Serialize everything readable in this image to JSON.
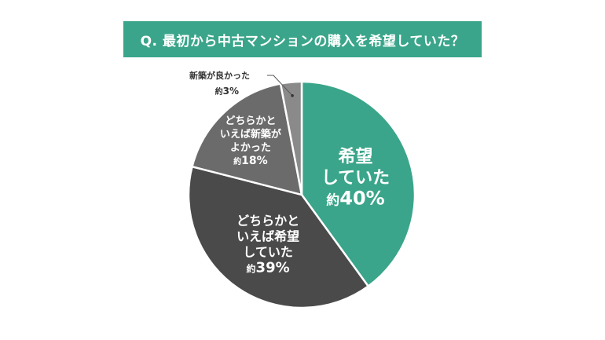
{
  "title": "Q. 最初から中古マンションの購入を希望していた？",
  "chart_data": {
    "type": "pie",
    "start": "top",
    "direction": "clockwise",
    "slices": [
      {
        "label_lines": [
          "希望",
          "していた"
        ],
        "prefix": "約",
        "value_text": "40%",
        "value": 40,
        "color": "#3aa58a"
      },
      {
        "label_lines": [
          "どちらかと",
          "いえば希望",
          "していた"
        ],
        "prefix": "約",
        "value_text": "39%",
        "value": 39,
        "color": "#4a4a4a"
      },
      {
        "label_lines": [
          "どちらかと",
          "いえば新築が",
          "よかった"
        ],
        "prefix": "約",
        "value_text": "18%",
        "value": 18,
        "color": "#6b6b6b"
      },
      {
        "label_lines": [
          "新築が良かった"
        ],
        "prefix": "約",
        "value_text": "3%",
        "value": 3,
        "color": "#8a8a8a"
      }
    ]
  }
}
